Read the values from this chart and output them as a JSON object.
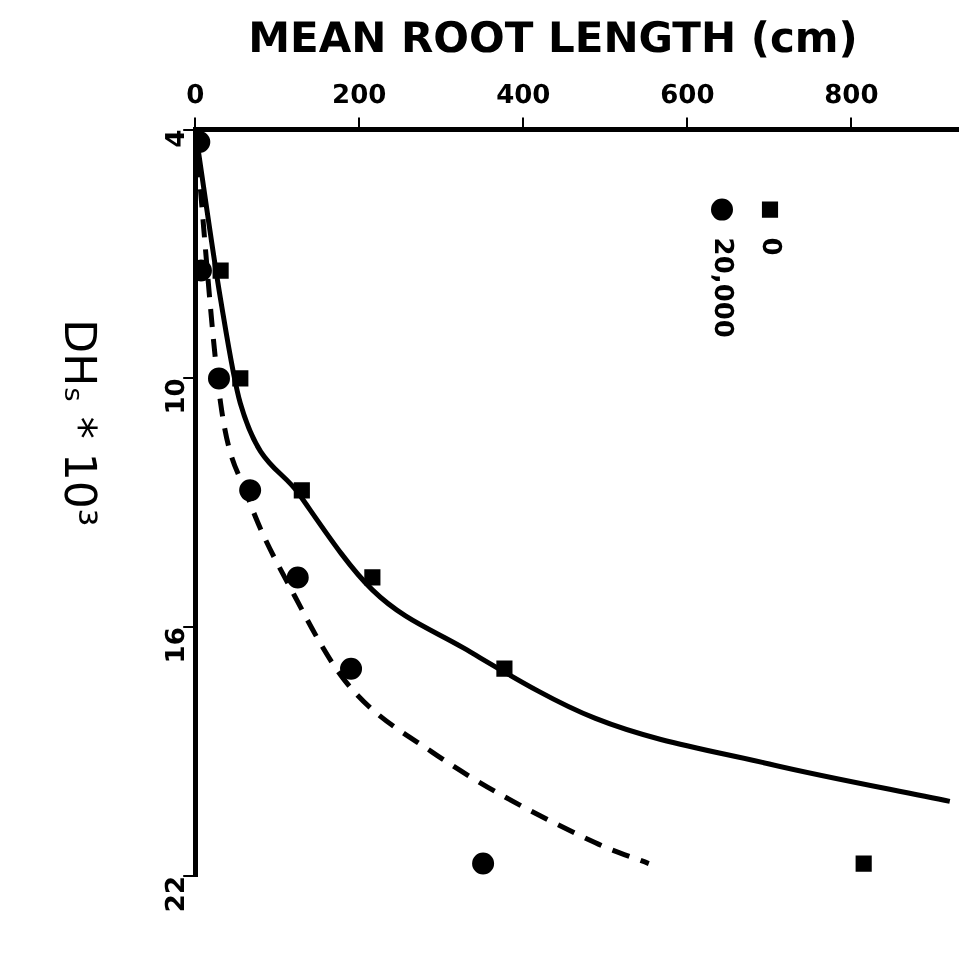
{
  "chart_data": {
    "type": "scatter",
    "title": "MEAN ROOT LENGTH (cm)",
    "ylabel": "DHₛ * 10³",
    "xlim": [
      0,
      930
    ],
    "xticks": [
      0,
      200,
      400,
      600,
      800
    ],
    "ylim": [
      22,
      4
    ],
    "yticks": [
      4,
      10,
      16,
      22
    ],
    "legend": "top right",
    "grid": false,
    "series": [
      {
        "name": "0",
        "color": "#000000",
        "marker": "square",
        "x": [
          null,
          31,
          55,
          130,
          216,
          377,
          815
        ],
        "values": [
          null,
          7.4,
          10,
          12.7,
          14.8,
          17,
          21.7
        ]
      },
      {
        "name": "20,000",
        "color": "#000000",
        "marker": "circle",
        "x": [
          5,
          7,
          29,
          67,
          125,
          190,
          351
        ],
        "values": [
          4.3,
          7.4,
          10,
          12.7,
          14.8,
          17,
          21.7
        ]
      },
      {
        "type": "line",
        "color": "#000000",
        "marker": "none",
        "line_style": "solid",
        "x": [
          0,
          31,
          55,
          127,
          216,
          327,
          488,
          700,
          920
        ],
        "values": [
          4,
          8.1,
          10.6,
          12.8,
          15.1,
          16.5,
          18.2,
          19.3,
          20.2
        ]
      },
      {
        "type": "line",
        "color": "#000000",
        "marker": "none",
        "line_style": "dashed",
        "x": [
          0,
          31,
          63,
          120,
          183,
          288,
          488,
          553
        ],
        "values": [
          4,
          10.6,
          12.8,
          15.2,
          17.3,
          19,
          21.2,
          21.7
        ]
      }
    ]
  }
}
